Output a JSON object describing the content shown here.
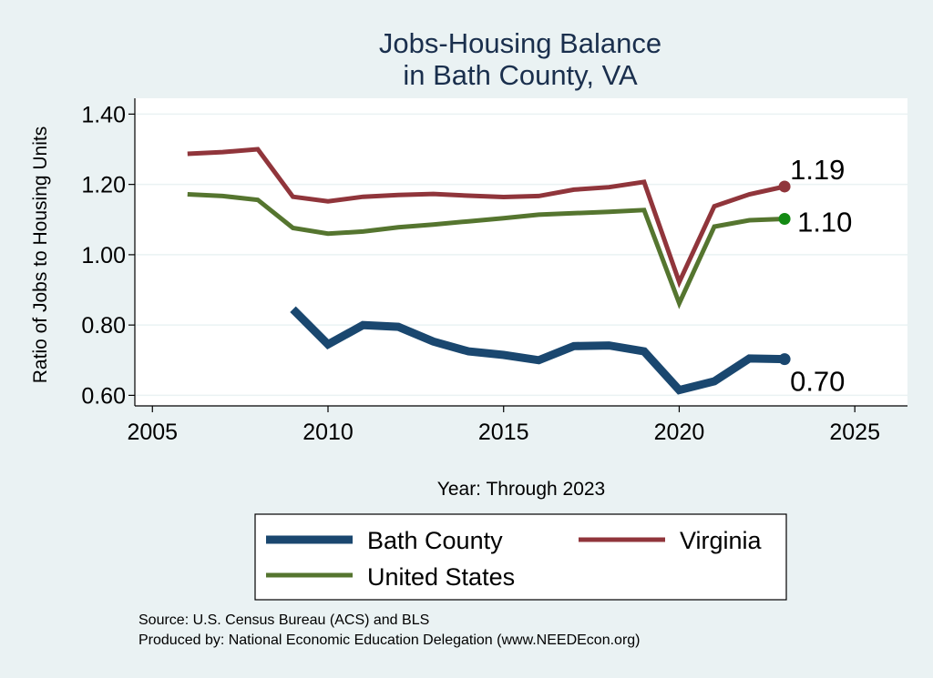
{
  "chart_data": {
    "type": "line",
    "title": [
      "Jobs-Housing Balance",
      "in Bath County, VA"
    ],
    "xlabel": "Year: Through 2023",
    "ylabel": "Ratio of Jobs to Housing Units",
    "xlim": [
      2004.5,
      2026.5
    ],
    "ylim": [
      0.57,
      1.445
    ],
    "x_ticks": [
      "2005",
      "2010",
      "2015",
      "2020",
      "2025"
    ],
    "y_ticks": [
      "0.60",
      "0.80",
      "1.00",
      "1.20",
      "1.40"
    ],
    "grid": true,
    "series": [
      {
        "name": "Bath County",
        "color": "#1a476f",
        "x": [
          2009,
          2010,
          2011,
          2012,
          2013,
          2014,
          2015,
          2016,
          2017,
          2018,
          2019,
          2020,
          2021,
          2022,
          2023
        ],
        "y": [
          0.845,
          0.745,
          0.8,
          0.795,
          0.753,
          0.725,
          0.715,
          0.7,
          0.74,
          0.742,
          0.725,
          0.615,
          0.64,
          0.705,
          0.703
        ],
        "end_label": "0.70"
      },
      {
        "name": "Virginia",
        "color": "#90353b",
        "x": [
          2006,
          2007,
          2008,
          2009,
          2010,
          2011,
          2012,
          2013,
          2014,
          2015,
          2016,
          2017,
          2018,
          2019,
          2020,
          2021,
          2022,
          2023
        ],
        "y": [
          1.287,
          1.292,
          1.3,
          1.165,
          1.152,
          1.165,
          1.17,
          1.173,
          1.168,
          1.164,
          1.167,
          1.185,
          1.192,
          1.207,
          0.922,
          1.138,
          1.172,
          1.194
        ],
        "end_label": "1.19"
      },
      {
        "name": "United States",
        "color": "#55752f",
        "x": [
          2006,
          2007,
          2008,
          2009,
          2010,
          2011,
          2012,
          2013,
          2014,
          2015,
          2016,
          2017,
          2018,
          2019,
          2020,
          2021,
          2022,
          2023
        ],
        "y": [
          1.172,
          1.167,
          1.156,
          1.076,
          1.06,
          1.066,
          1.078,
          1.086,
          1.095,
          1.104,
          1.114,
          1.118,
          1.122,
          1.127,
          0.862,
          1.08,
          1.098,
          1.102
        ],
        "end_label": "1.10"
      }
    ],
    "legend": {
      "placement": "bottom",
      "entries": [
        "Bath County",
        "Virginia",
        "United States"
      ]
    },
    "end_markers": {
      "Bath County": "#1a476f",
      "Virginia": "#90353b",
      "United States": "#138a13"
    }
  },
  "source_lines": [
    "Source: U.S. Census Bureau (ACS) and BLS",
    "Produced by: National Economic Education Delegation (www.NEEDEcon.org)"
  ]
}
